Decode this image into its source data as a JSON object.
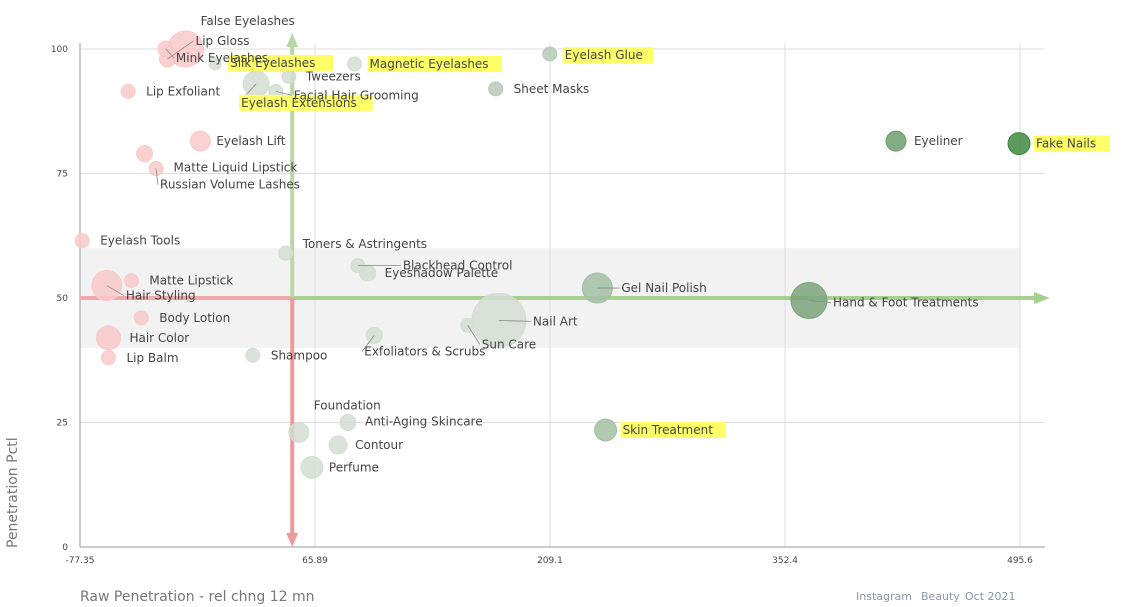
{
  "chart_data": {
    "type": "scatter",
    "title": "",
    "xlabel": "Raw Penetration - rel chng 12 mn",
    "ylabel": "Penetration Pctl",
    "xlim": [
      -77.35,
      495.6
    ],
    "ylim": [
      0,
      100
    ],
    "x_ticks": [
      "-77.35",
      "65.89",
      "209.1",
      "352.4",
      "495.6"
    ],
    "x_tick_values": [
      -77.35,
      65.89,
      209.1,
      352.4,
      495.6
    ],
    "y_ticks": [
      "0",
      "25",
      "50",
      "75",
      "100"
    ],
    "y_tick_values": [
      0,
      25,
      50,
      75,
      100
    ],
    "grid": true,
    "reference_x": 52,
    "reference_y": 50,
    "band_y": [
      40,
      60
    ],
    "points": [
      {
        "name": "False Eyelashes",
        "x": -13,
        "y": 100,
        "size": 18,
        "color": "#f9c9c9",
        "highlight": false
      },
      {
        "name": "Lip Gloss",
        "x": -24,
        "y": 98,
        "size": 8,
        "color": "#f9c9c9",
        "highlight": false
      },
      {
        "name": "Silk Eyelashes",
        "x": 5,
        "y": 97,
        "size": 6,
        "color": "#d4ddd4",
        "highlight": true
      },
      {
        "name": "Magnetic Eyelashes",
        "x": 90,
        "y": 97,
        "size": 7,
        "color": "#d4ddd4",
        "highlight": true
      },
      {
        "name": "Eyelash Glue",
        "x": 209,
        "y": 99,
        "size": 7,
        "color": "#b7c9b7",
        "highlight": true
      },
      {
        "name": "Tweezers",
        "x": 50,
        "y": 94.5,
        "size": 7,
        "color": "#d4ddd4",
        "highlight": false
      },
      {
        "name": "Eyelash Extensions",
        "x": 30,
        "y": 93,
        "size": 13,
        "color": "#d4ddd4",
        "highlight": true
      },
      {
        "name": "Facial Hair Grooming",
        "x": 42,
        "y": 91.5,
        "size": 7,
        "color": "#d4ddd4",
        "highlight": false
      },
      {
        "name": "Lip Exfoliant",
        "x": -48,
        "y": 91.5,
        "size": 7,
        "color": "#f9c9c9",
        "highlight": false
      },
      {
        "name": "Mink Eyelashes",
        "x": -25,
        "y": 100,
        "size": 8,
        "color": "#f9c9c9",
        "highlight": false
      },
      {
        "name": "Sheet Masks",
        "x": 176,
        "y": 92,
        "size": 7,
        "color": "#b7c9b7",
        "highlight": false
      },
      {
        "name": "Eyelash Lift",
        "x": -4,
        "y": 81.5,
        "size": 10,
        "color": "#f9c9c9",
        "highlight": false
      },
      {
        "name": "Eyeliner",
        "x": 420,
        "y": 81.5,
        "size": 10,
        "color": "#6d9d6d",
        "highlight": false
      },
      {
        "name": "Fake Nails",
        "x": 495,
        "y": 81,
        "size": 11,
        "color": "#3f8a3f",
        "highlight": true
      },
      {
        "name": "Matte Liquid Lipstick",
        "x": -38,
        "y": 79,
        "size": 8,
        "color": "#f9c9c9",
        "highlight": false
      },
      {
        "name": "Russian Volume Lashes",
        "x": -31,
        "y": 76,
        "size": 7,
        "color": "#f9c9c9",
        "highlight": false
      },
      {
        "name": "Eyelash Tools",
        "x": -76,
        "y": 61.5,
        "size": 7,
        "color": "#f9c9c9",
        "highlight": false
      },
      {
        "name": "Toners & Astringents",
        "x": 48,
        "y": 59,
        "size": 7,
        "color": "#d4ddd4",
        "highlight": false
      },
      {
        "name": "Blackhead Control",
        "x": 92,
        "y": 56.5,
        "size": 7,
        "color": "#d4ddd4",
        "highlight": false
      },
      {
        "name": "Eyeshadow Palette",
        "x": 98,
        "y": 55,
        "size": 8,
        "color": "#d4ddd4",
        "highlight": false
      },
      {
        "name": "Matte Lipstick",
        "x": -46,
        "y": 53.5,
        "size": 7,
        "color": "#f9c9c9",
        "highlight": false
      },
      {
        "name": "Gel Nail Polish",
        "x": 238,
        "y": 52,
        "size": 15,
        "color": "#a3bfa3",
        "highlight": false
      },
      {
        "name": "Hair Styling",
        "x": -61,
        "y": 52.5,
        "size": 15,
        "color": "#f9c9c9",
        "highlight": false
      },
      {
        "name": "Hand & Foot Treatments",
        "x": 367,
        "y": 49.5,
        "size": 18,
        "color": "#7da37d",
        "highlight": false
      },
      {
        "name": "Body Lotion",
        "x": -40,
        "y": 46,
        "size": 7,
        "color": "#f9c9c9",
        "highlight": false
      },
      {
        "name": "Nail Art",
        "x": 178,
        "y": 45.5,
        "size": 27,
        "color": "#d4ddd4",
        "highlight": false
      },
      {
        "name": "Sun Care",
        "x": 159,
        "y": 44.5,
        "size": 7,
        "color": "#d4ddd4",
        "highlight": false
      },
      {
        "name": "Exfoliators & Scrubs",
        "x": 102,
        "y": 42.5,
        "size": 8,
        "color": "#d4ddd4",
        "highlight": false
      },
      {
        "name": "Hair Color",
        "x": -60,
        "y": 42,
        "size": 12,
        "color": "#f9c9c9",
        "highlight": false
      },
      {
        "name": "Lip Balm",
        "x": -60,
        "y": 38,
        "size": 7,
        "color": "#f9c9c9",
        "highlight": false
      },
      {
        "name": "Shampoo",
        "x": 28,
        "y": 38.5,
        "size": 7,
        "color": "#d4ddd4",
        "highlight": false
      },
      {
        "name": "Foundation",
        "x": 56,
        "y": 23,
        "size": 10,
        "color": "#d4ddd4",
        "highlight": false
      },
      {
        "name": "Anti-Aging Skincare",
        "x": 86,
        "y": 25,
        "size": 8,
        "color": "#d4ddd4",
        "highlight": false
      },
      {
        "name": "Contour",
        "x": 80,
        "y": 20.5,
        "size": 9,
        "color": "#d4ddd4",
        "highlight": false
      },
      {
        "name": "Skin Treatment",
        "x": 243,
        "y": 23.5,
        "size": 11,
        "color": "#a3bfa3",
        "highlight": true
      },
      {
        "name": "Perfume",
        "x": 64,
        "y": 16,
        "size": 11,
        "color": "#d4ddd4",
        "highlight": false
      }
    ]
  },
  "footer": {
    "platform": "Instagram",
    "category": "Beauty",
    "period": "Oct 2021"
  },
  "colors": {
    "highlight": "#ffff66",
    "up_arrow": "#b9d6a4",
    "down_arrow": "#ee9a9a",
    "h_arrow_left": "#f0a8a8",
    "h_arrow_right": "#a7cf8f",
    "band": "#f2f2f2",
    "grid": "#dddddd"
  }
}
